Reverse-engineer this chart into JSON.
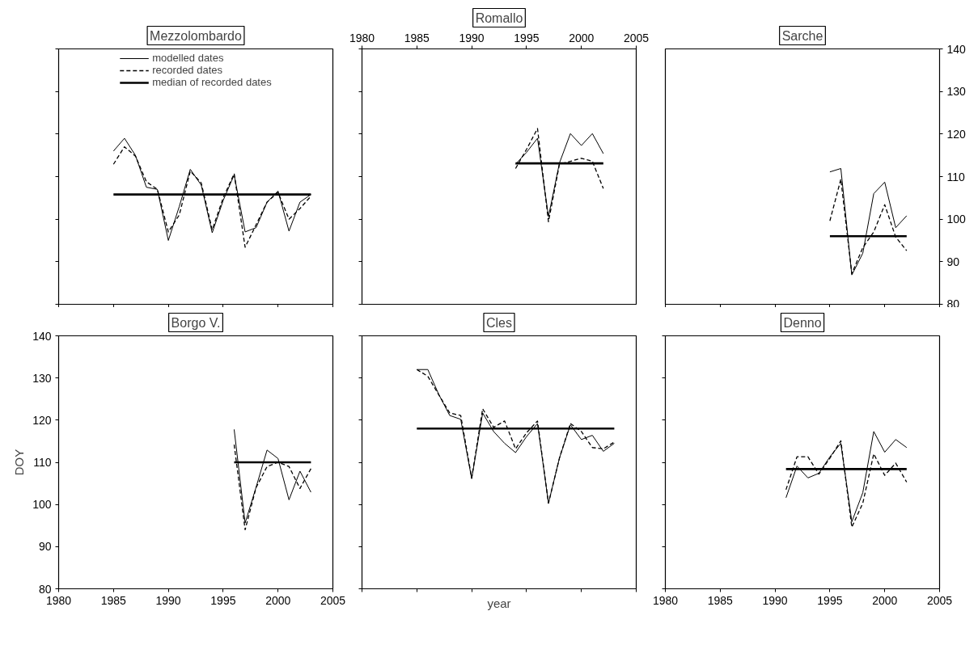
{
  "chart_data": [
    {
      "type": "line",
      "title": "Mezzolombardo",
      "legend": "top",
      "xlim": [
        1980,
        2005
      ],
      "xticks": [
        1980,
        1985,
        1990,
        1995,
        2000,
        2005
      ],
      "ylim": [
        80,
        140
      ],
      "yticks": [
        80,
        90,
        100,
        110,
        120,
        130,
        140
      ],
      "tick_labels": false,
      "series": [
        {
          "name": "modelled dates",
          "color": "#000000",
          "line_style": "solid",
          "x": [
            1985,
            1986,
            1987,
            1988,
            1989,
            1990,
            1991,
            1992,
            1993,
            1994,
            1995,
            1996,
            1997,
            1998,
            1999,
            2000,
            2001,
            2002,
            2003
          ],
          "values": [
            116,
            119,
            115,
            107.5,
            107,
            95,
            103,
            111.7,
            108,
            96.8,
            104.4,
            110.4,
            97,
            98,
            104,
            106.6,
            97.2,
            104,
            105.8
          ]
        },
        {
          "name": "recorded dates",
          "color": "#000000",
          "line_style": "dashed",
          "x": [
            1985,
            1986,
            1987,
            1988,
            1989,
            1990,
            1991,
            1992,
            1993,
            1994,
            1995,
            1996,
            1997,
            1998,
            1999,
            2000,
            2001,
            2002,
            2003
          ],
          "values": [
            112.9,
            117,
            114.8,
            108.8,
            107,
            97,
            101,
            111.3,
            108.5,
            97.5,
            105,
            110.7,
            93.4,
            98.7,
            104,
            106.3,
            100,
            102.5,
            105.4
          ]
        },
        {
          "name": "median of recorded dates",
          "color": "#000000",
          "line_style": "solid",
          "x": [
            1985,
            2003
          ],
          "values": [
            105.8,
            105.8
          ]
        }
      ]
    },
    {
      "type": "line",
      "title": "Romallo",
      "xlim": [
        1980,
        2005
      ],
      "xticks": [
        1980,
        1985,
        1990,
        1995,
        2000,
        2005
      ],
      "ylim": [
        80,
        140
      ],
      "yticks": [
        80,
        90,
        100,
        110,
        120,
        130,
        140
      ],
      "tick_labels": "x",
      "series": [
        {
          "color": "#000000",
          "line_style": "solid",
          "x": [
            1994,
            1995,
            1996,
            1997,
            1998,
            1999,
            2000,
            2001,
            2002
          ],
          "values": [
            112.9,
            115.7,
            119,
            100.6,
            113.2,
            120.1,
            117.3,
            120.1,
            115.4
          ]
        },
        {
          "color": "#000000",
          "line_style": "dashed",
          "x": [
            1994,
            1995,
            1996,
            1997,
            1998,
            1999,
            2000,
            2001,
            2002
          ],
          "values": [
            111.9,
            116.4,
            121.3,
            99.4,
            112.9,
            113.6,
            114.3,
            113.6,
            107.2
          ]
        },
        {
          "color": "#000000",
          "line_style": "solid",
          "x": [
            1994,
            2002
          ],
          "values": [
            113.1,
            113.1
          ]
        }
      ]
    },
    {
      "type": "line",
      "title": "Sarche",
      "xlim": [
        1980,
        2005
      ],
      "xticks": [
        1980,
        1985,
        1990,
        1995,
        2000,
        2005
      ],
      "ylim": [
        80,
        140
      ],
      "yticks": [
        80,
        90,
        100,
        110,
        120,
        130,
        140
      ],
      "tick_labels": "y",
      "series": [
        {
          "color": "#000000",
          "line_style": "solid",
          "x": [
            1995,
            1996,
            1997,
            1998,
            1999,
            2000,
            2001,
            2002
          ],
          "values": [
            111.1,
            111.9,
            86.9,
            92,
            106,
            108.7,
            98,
            100.8
          ]
        },
        {
          "color": "#000000",
          "line_style": "dashed",
          "x": [
            1995,
            1996,
            1997,
            1998,
            1999,
            2000,
            2001,
            2002
          ],
          "values": [
            99.6,
            109.4,
            87.2,
            93.3,
            97,
            103.4,
            95.8,
            92.6
          ]
        },
        {
          "color": "#000000",
          "line_style": "solid",
          "x": [
            1995,
            2002
          ],
          "values": [
            96,
            96
          ]
        }
      ]
    },
    {
      "type": "line",
      "title": "Borgo V.",
      "ylabel": "DOY",
      "xlim": [
        1980,
        2005
      ],
      "xticks": [
        1980,
        1985,
        1990,
        1995,
        2000,
        2005
      ],
      "ylim": [
        80,
        140
      ],
      "yticks": [
        80,
        90,
        100,
        110,
        120,
        130,
        140
      ],
      "series": [
        {
          "color": "#000000",
          "line_style": "solid",
          "x": [
            1996,
            1997,
            1998,
            1999,
            2000,
            2001,
            2002,
            2003
          ],
          "values": [
            117.8,
            95.6,
            104.1,
            112.9,
            110.9,
            101.1,
            107.9,
            102.9
          ]
        },
        {
          "color": "#000000",
          "line_style": "dashed",
          "x": [
            1996,
            1997,
            1998,
            1999,
            2000,
            2001,
            2002,
            2003
          ],
          "values": [
            114.2,
            94,
            104,
            109,
            110,
            109,
            103.8,
            108.5
          ]
        },
        {
          "color": "#000000",
          "line_style": "solid",
          "x": [
            1996,
            2003
          ],
          "values": [
            110,
            110
          ]
        }
      ]
    },
    {
      "type": "line",
      "title": "Cles",
      "xlabel": "year",
      "xlim": [
        1980,
        2005
      ],
      "xticks": [
        1980,
        1985,
        1990,
        1995,
        2000,
        2005
      ],
      "ylim": [
        80,
        140
      ],
      "yticks": [
        80,
        90,
        100,
        110,
        120,
        130,
        140
      ],
      "tick_labels": false,
      "series": [
        {
          "color": "#000000",
          "line_style": "solid",
          "x": [
            1985,
            1986,
            1987,
            1988,
            1989,
            1990,
            1991,
            1992,
            1993,
            1994,
            1995,
            1996,
            1997,
            1998,
            1999,
            2000,
            2001,
            2002,
            2003
          ],
          "values": [
            132,
            132,
            126.1,
            121.1,
            120.2,
            106.1,
            121.7,
            117.3,
            114.5,
            112.3,
            116.1,
            119.2,
            100.3,
            111,
            118.9,
            115.4,
            116.4,
            112.6,
            114.5
          ]
        },
        {
          "color": "#000000",
          "line_style": "dashed",
          "x": [
            1985,
            1986,
            1987,
            1988,
            1989,
            1990,
            1991,
            1992,
            1993,
            1994,
            1995,
            1996,
            1997,
            1998,
            1999,
            2000,
            2001,
            2002,
            2003
          ],
          "values": [
            132,
            130.4,
            126,
            121.7,
            121.1,
            106.3,
            122.7,
            118.3,
            119.8,
            113.2,
            117,
            119.8,
            100.3,
            111,
            119.2,
            117.3,
            113.5,
            113.2,
            114.8
          ]
        },
        {
          "color": "#000000",
          "line_style": "solid",
          "x": [
            1985,
            2003
          ],
          "values": [
            118,
            118
          ]
        }
      ]
    },
    {
      "type": "line",
      "title": "Denno",
      "xlim": [
        1980,
        2005
      ],
      "xticks": [
        1980,
        1985,
        1990,
        1995,
        2000,
        2005
      ],
      "ylim": [
        80,
        140
      ],
      "yticks": [
        80,
        90,
        100,
        110,
        120,
        130,
        140
      ],
      "tick_labels": "x",
      "series": [
        {
          "color": "#000000",
          "line_style": "solid",
          "x": [
            1991,
            1992,
            1993,
            1994,
            1995,
            1996,
            1997,
            1998,
            1999,
            2000,
            2001,
            2002
          ],
          "values": [
            101.6,
            109.1,
            106.3,
            107.4,
            111.3,
            114.5,
            95.9,
            102.8,
            117.3,
            112.4,
            115.4,
            113.5
          ]
        },
        {
          "color": "#000000",
          "line_style": "dashed",
          "x": [
            1991,
            1992,
            1993,
            1994,
            1995,
            1996,
            1997,
            1998,
            1999,
            2000,
            2001,
            2002
          ],
          "values": [
            103.5,
            111.3,
            111.3,
            107.2,
            111,
            115.1,
            94.6,
            100.3,
            112,
            106.9,
            109.8,
            105.3
          ]
        },
        {
          "color": "#000000",
          "line_style": "solid",
          "x": [
            1991,
            2002
          ],
          "values": [
            108.4,
            108.4
          ]
        }
      ]
    }
  ]
}
